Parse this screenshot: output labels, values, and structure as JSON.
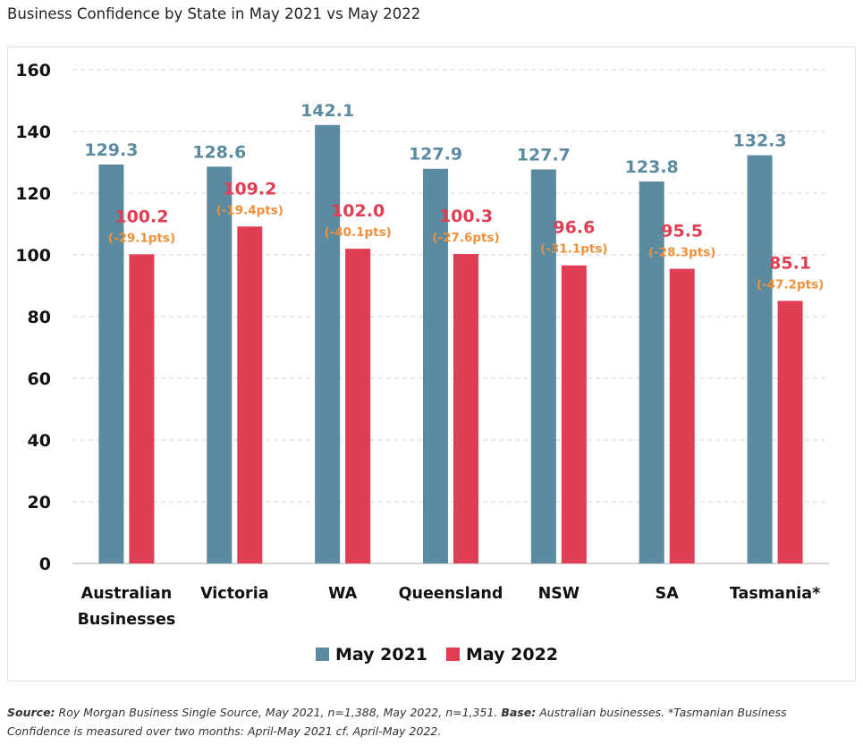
{
  "title": "Business Confidence by State in May 2021 vs May 2022",
  "chart_data": {
    "type": "bar",
    "categories": [
      [
        "Australian",
        "Businesses"
      ],
      [
        "Victoria"
      ],
      [
        "WA"
      ],
      [
        "Queensland"
      ],
      [
        "NSW"
      ],
      [
        "SA"
      ],
      [
        "Tasmania*"
      ]
    ],
    "series": [
      {
        "name": "May 2021",
        "color": "#5a8ba0",
        "values": [
          129.3,
          128.6,
          142.1,
          127.9,
          127.7,
          123.8,
          132.3
        ],
        "labels": [
          "129.3",
          "128.6",
          "142.1",
          "127.9",
          "127.7",
          "123.8",
          "132.3"
        ]
      },
      {
        "name": "May 2022",
        "color": "#e03e52",
        "values": [
          100.2,
          109.2,
          102.0,
          100.3,
          96.6,
          95.5,
          85.1
        ],
        "labels": [
          "100.2",
          "109.2",
          "102.0",
          "100.3",
          "96.6",
          "95.5",
          "85.1"
        ]
      }
    ],
    "change_labels": [
      "(-29.1pts)",
      "(-19.4pts)",
      "(-40.1pts)",
      "(-27.6pts)",
      "(-31.1pts)",
      "(-28.3pts)",
      "(-47.2pts)"
    ],
    "change_color": "#f0903a",
    "ylim": [
      0,
      160
    ],
    "yticks": [
      0,
      20,
      40,
      60,
      80,
      100,
      120,
      140,
      160
    ],
    "grid": true,
    "legend": "bottom"
  },
  "source": {
    "source_label": "Source:",
    "source_text": " Roy Morgan Business Single Source, May 2021, n=1,388, May 2022, n=1,351. ",
    "base_label": "Base:",
    "base_text": " Australian businesses. *Tasmanian Business Confidence is measured over two months: April-May 2021 cf. April-May 2022."
  }
}
